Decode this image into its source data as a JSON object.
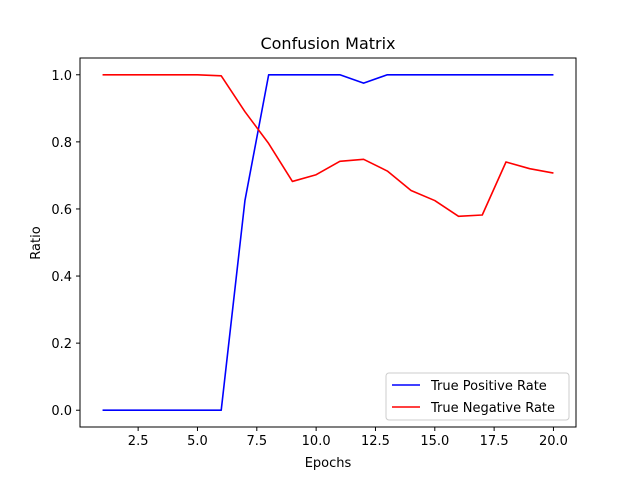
{
  "chart_data": {
    "type": "line",
    "title": "Confusion Matrix",
    "xlabel": "Epochs",
    "ylabel": "Ratio",
    "xlim": [
      0.05,
      20.95
    ],
    "ylim": [
      -0.05,
      1.05
    ],
    "xticks": [
      2.5,
      5.0,
      7.5,
      10.0,
      12.5,
      15.0,
      17.5,
      20.0
    ],
    "xtick_labels": [
      "2.5",
      "5.0",
      "7.5",
      "10.0",
      "12.5",
      "15.0",
      "17.5",
      "20.0"
    ],
    "yticks": [
      0.0,
      0.2,
      0.4,
      0.6,
      0.8,
      1.0
    ],
    "ytick_labels": [
      "0.0",
      "0.2",
      "0.4",
      "0.6",
      "0.8",
      "1.0"
    ],
    "grid": false,
    "legend_position": "lower right",
    "x": [
      1,
      2,
      3,
      4,
      5,
      6,
      7,
      8,
      9,
      10,
      11,
      12,
      13,
      14,
      15,
      16,
      17,
      18,
      19,
      20
    ],
    "series": [
      {
        "name": "True Positive Rate",
        "color": "#0000ff",
        "values": [
          0.0,
          0.0,
          0.0,
          0.0,
          0.0,
          0.0,
          0.625,
          1.0,
          1.0,
          1.0,
          1.0,
          0.975,
          1.0,
          1.0,
          1.0,
          1.0,
          1.0,
          1.0,
          1.0,
          1.0
        ]
      },
      {
        "name": "True Negative Rate",
        "color": "#ff0000",
        "values": [
          1.0,
          1.0,
          1.0,
          1.0,
          1.0,
          0.997,
          0.89,
          0.795,
          0.682,
          0.702,
          0.742,
          0.748,
          0.713,
          0.655,
          0.625,
          0.578,
          0.582,
          0.74,
          0.72,
          0.707
        ]
      }
    ]
  }
}
